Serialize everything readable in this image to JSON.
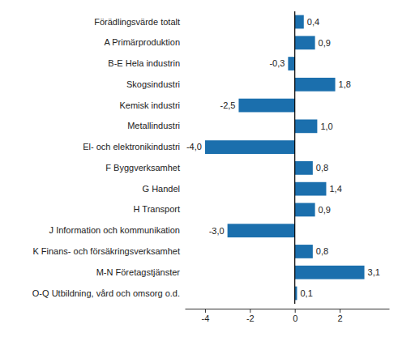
{
  "chart_data": {
    "type": "bar",
    "orientation": "horizontal",
    "categories": [
      "Förädlingsvärde totalt",
      "A Primärproduktion",
      "B-E Hela industrin",
      "Skogsindustri",
      "Kemisk industri",
      "Metallindustri",
      "El- och elektronikindustri",
      "F Byggverksamhet",
      "G Handel",
      "H Transport",
      "J Information och kommunikation",
      "K Finans- och försäkringsverksamhet",
      "M-N Företagstjänster",
      "O-Q Utbildning, vård och omsorg o.d."
    ],
    "values": [
      0.4,
      0.9,
      -0.3,
      1.8,
      -2.5,
      1.0,
      -4.0,
      0.8,
      1.4,
      0.9,
      -3.0,
      0.8,
      3.1,
      0.1
    ],
    "value_labels": [
      "0,4",
      "0,9",
      "-0,3",
      "1,8",
      "-2,5",
      "1,0",
      "-4,0",
      "0,8",
      "1,4",
      "0,9",
      "-3,0",
      "0,8",
      "3,1",
      "0,1"
    ],
    "color": "#1b6fad",
    "xlim": [
      -4.9,
      4.2
    ],
    "xticks": [
      -4,
      -2,
      0,
      2
    ],
    "grid": false,
    "data_labels": true
  }
}
